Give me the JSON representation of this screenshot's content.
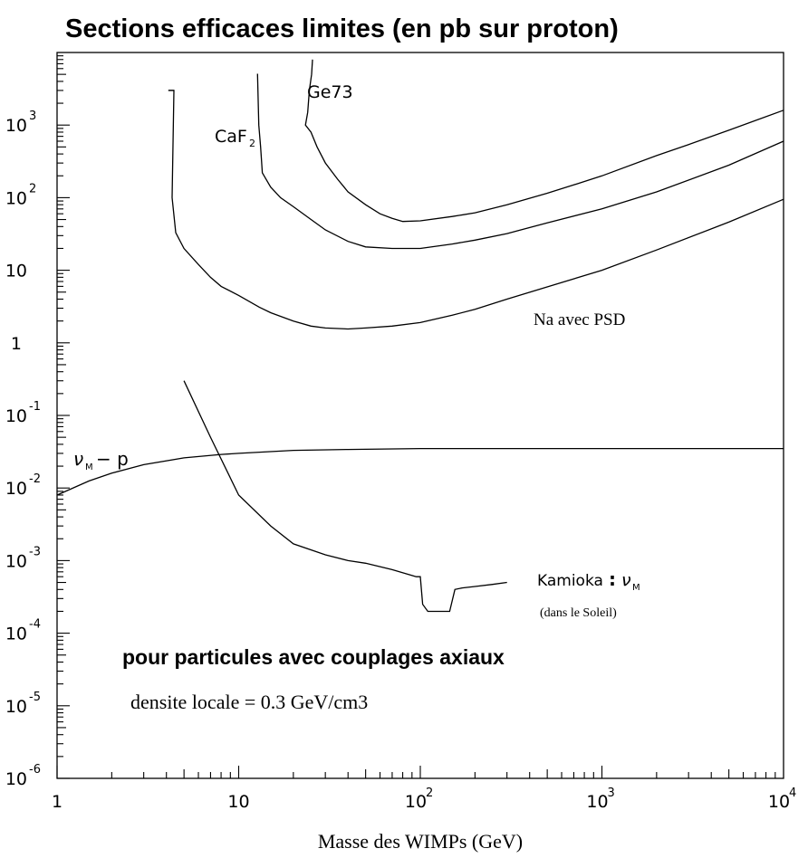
{
  "chart_data": {
    "type": "line",
    "title": "Sections efficaces limites (en pb sur proton)",
    "xlabel": "Masse des WIMPs (GeV)",
    "ylabel": "",
    "x_scale": "log",
    "y_scale": "log",
    "xlim": [
      1,
      10000
    ],
    "ylim": [
      1e-06,
      10000
    ],
    "x_tick_labels": [
      {
        "value": 1,
        "base": "1",
        "exp": ""
      },
      {
        "value": 10,
        "base": "10",
        "exp": ""
      },
      {
        "value": 100,
        "base": "10",
        "exp": "2"
      },
      {
        "value": 1000,
        "base": "10",
        "exp": "3"
      },
      {
        "value": 10000,
        "base": "10",
        "exp": "4"
      }
    ],
    "y_tick_labels": [
      {
        "value": 1e-06,
        "base": "10",
        "exp": "-6"
      },
      {
        "value": 1e-05,
        "base": "10",
        "exp": "-5"
      },
      {
        "value": 0.0001,
        "base": "10",
        "exp": "-4"
      },
      {
        "value": 0.001,
        "base": "10",
        "exp": "-3"
      },
      {
        "value": 0.01,
        "base": "10",
        "exp": "-2"
      },
      {
        "value": 0.1,
        "base": "10",
        "exp": "-1"
      },
      {
        "value": 1,
        "base": "1",
        "exp": ""
      },
      {
        "value": 10,
        "base": "10",
        "exp": ""
      },
      {
        "value": 100,
        "base": "10",
        "exp": "2"
      },
      {
        "value": 1000,
        "base": "10",
        "exp": "3"
      }
    ],
    "grid": false,
    "series": [
      {
        "name": "Ge73",
        "x": [
          25.5,
          25.2,
          24.5,
          24.0,
          23.3,
          25.0,
          27,
          30,
          35,
          40,
          50,
          60,
          70,
          80,
          100,
          150,
          200,
          300,
          500,
          700,
          1000,
          2000,
          3000,
          5000,
          10000
        ],
        "y": [
          8000,
          5000,
          3000,
          1500,
          1000,
          800,
          500,
          300,
          180,
          120,
          80,
          60,
          52,
          47,
          48,
          55,
          62,
          80,
          115,
          150,
          200,
          380,
          540,
          850,
          1600
        ]
      },
      {
        "name": "CaF2",
        "x": [
          12.8,
          12.7,
          12.9,
          13.2,
          13.5,
          15,
          17,
          20,
          25,
          30,
          40,
          50,
          70,
          100,
          150,
          200,
          300,
          500,
          1000,
          2000,
          5000,
          10000
        ],
        "y": [
          5000,
          5000,
          1000,
          500,
          220,
          140,
          100,
          75,
          50,
          36,
          25,
          21,
          20,
          20,
          23,
          26,
          32,
          45,
          70,
          120,
          280,
          600
        ]
      },
      {
        "name": "Na avec PSD",
        "x": [
          4.1,
          4.4,
          4.3,
          4.5,
          5.0,
          6,
          7,
          8,
          10,
          13,
          15,
          20,
          25,
          30,
          40,
          50,
          70,
          100,
          150,
          200,
          300,
          500,
          1000,
          2000,
          5000,
          10000
        ],
        "y": [
          3000,
          3000,
          100,
          33,
          20,
          12,
          8,
          6,
          4.5,
          3.1,
          2.6,
          2.0,
          1.7,
          1.6,
          1.55,
          1.6,
          1.7,
          1.9,
          2.4,
          2.9,
          4.0,
          5.9,
          10,
          19,
          46,
          95
        ]
      },
      {
        "name": "Kamioka: ν_M",
        "x": [
          5,
          7,
          10,
          15,
          20,
          30,
          40,
          50,
          70,
          95,
          100,
          103,
          110,
          130,
          140,
          145,
          155,
          170,
          200,
          250,
          300
        ],
        "y": [
          0.3,
          0.05,
          0.008,
          0.003,
          0.0017,
          0.0012,
          0.001,
          0.00092,
          0.00075,
          0.0006,
          0.0006,
          0.00025,
          0.0002,
          0.0002,
          0.0002,
          0.0002,
          0.0004,
          0.00042,
          0.00044,
          0.00047,
          0.0005
        ]
      },
      {
        "name": "ν_M− p",
        "x": [
          1,
          1.5,
          2,
          3,
          5,
          8,
          10,
          20,
          40,
          100,
          1000,
          10000
        ],
        "y": [
          0.008,
          0.0125,
          0.016,
          0.021,
          0.026,
          0.029,
          0.03,
          0.033,
          0.034,
          0.035,
          0.035,
          0.035
        ]
      }
    ],
    "annotations": {
      "ge73": "Ge73",
      "caf2_base": "CaF",
      "caf2_sub": "2",
      "na_psd": "Na avec PSD",
      "nu_p_nu": "ν",
      "nu_p_sub": "M",
      "nu_p_rest": "− p",
      "kamioka_text": "Kamioka",
      "kamioka_colon": ":",
      "kamioka_nu": "ν",
      "kamioka_sub": "M",
      "soleil": "(dans le Soleil)",
      "couplages": "pour particules avec couplages axiaux",
      "densite": "densite locale = 0.3 GeV/cm3"
    }
  }
}
